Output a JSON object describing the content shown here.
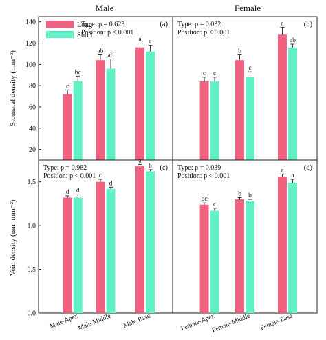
{
  "headers": {
    "left": "Male",
    "right": "Female"
  },
  "ylabels": {
    "top": "Stomatal density (mm⁻²)",
    "bottom": "Vein density (mm mm⁻²)"
  },
  "legend": [
    {
      "name": "Long",
      "color": "#f0627f"
    },
    {
      "name": "Short",
      "color": "#62f0c6"
    }
  ],
  "colors": {
    "long": "#f0627f",
    "short": "#62f0c6",
    "error": "#222222"
  },
  "chart_data": [
    {
      "type": "bar",
      "panel": "(a)",
      "stats": [
        "Type: p = 0.623",
        "Position: p < 0.001"
      ],
      "categories": [
        "Male-Apex",
        "Male-Middle",
        "Male-Base"
      ],
      "ylim": [
        10,
        145
      ],
      "yticks": [
        20,
        40,
        60,
        80,
        100,
        120,
        140
      ],
      "series": [
        {
          "name": "Long",
          "values": [
            72,
            104,
            116
          ],
          "errors": [
            4,
            5,
            4
          ],
          "letters": [
            "c",
            "ab",
            "a"
          ]
        },
        {
          "name": "Short",
          "values": [
            84,
            96,
            112
          ],
          "errors": [
            5,
            9,
            6
          ],
          "letters": [
            "bc",
            "ab",
            "a"
          ]
        }
      ]
    },
    {
      "type": "bar",
      "panel": "(b)",
      "stats": [
        "Type: p = 0.032",
        "Position: p < 0.001"
      ],
      "categories": [
        "Female-Apex",
        "Female-Middle",
        "Female-Base"
      ],
      "ylim": [
        10,
        145
      ],
      "yticks": [],
      "series": [
        {
          "name": "Long",
          "values": [
            84,
            104,
            128
          ],
          "errors": [
            4,
            5,
            7
          ],
          "letters": [
            "c",
            "b",
            "a"
          ]
        },
        {
          "name": "Short",
          "values": [
            84,
            88,
            116
          ],
          "errors": [
            4,
            5,
            3
          ],
          "letters": [
            "c",
            "c",
            "ab"
          ]
        }
      ]
    },
    {
      "type": "bar",
      "panel": "(c)",
      "stats": [
        "Type: p = 0.982",
        "Position: p < 0.001"
      ],
      "categories": [
        "Male-Apex",
        "Male-Middle",
        "Male-Base"
      ],
      "ylim": [
        0,
        1.75
      ],
      "yticks": [
        0.0,
        0.5,
        1.0,
        1.5
      ],
      "ytick_labels": [
        "0.0",
        "0.5",
        "1.0",
        "1.5"
      ],
      "series": [
        {
          "name": "Long",
          "values": [
            1.32,
            1.5,
            1.68
          ],
          "errors": [
            0.02,
            0.03,
            0.02
          ],
          "letters": [
            "d",
            "c",
            "a"
          ]
        },
        {
          "name": "Short",
          "values": [
            1.32,
            1.42,
            1.62
          ],
          "errors": [
            0.04,
            0.02,
            0.02
          ],
          "letters": [
            "d",
            "d",
            "b"
          ]
        }
      ]
    },
    {
      "type": "bar",
      "panel": "(d)",
      "stats": [
        "Type: p = 0.039",
        "Position: p < 0.001"
      ],
      "categories": [
        "Female-Apex",
        "Female-Middle",
        "Female-Base"
      ],
      "ylim": [
        0,
        1.75
      ],
      "yticks": [],
      "series": [
        {
          "name": "Long",
          "values": [
            1.24,
            1.3,
            1.56
          ],
          "errors": [
            0.02,
            0.02,
            0.03
          ],
          "letters": [
            "bc",
            "b",
            "a"
          ]
        },
        {
          "name": "Short",
          "values": [
            1.17,
            1.28,
            1.49
          ],
          "errors": [
            0.03,
            0.02,
            0.04
          ],
          "letters": [
            "c",
            "b",
            "a"
          ]
        }
      ]
    }
  ]
}
